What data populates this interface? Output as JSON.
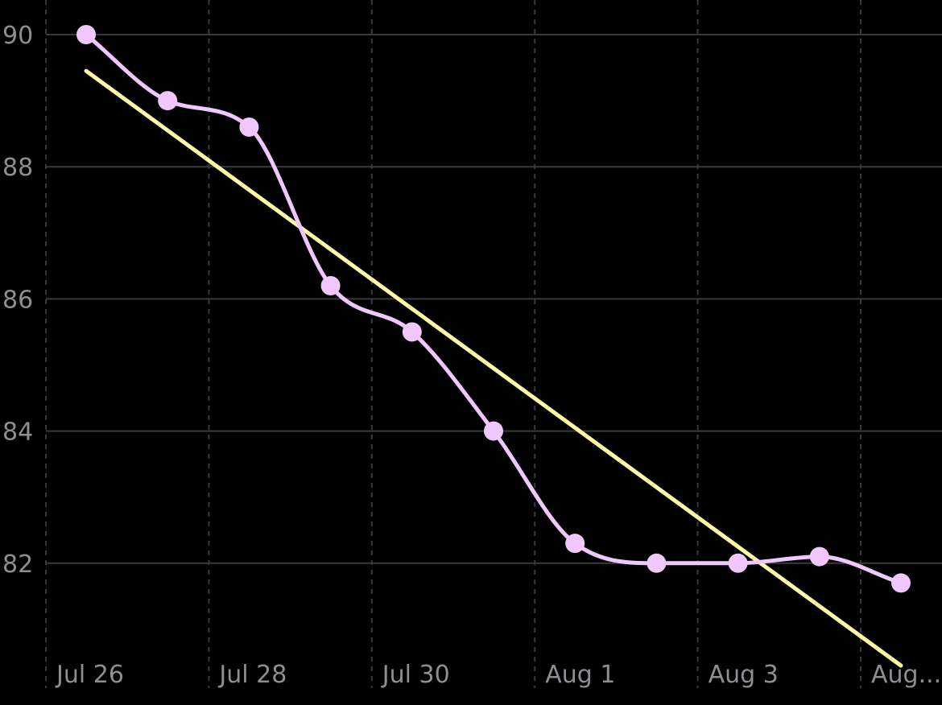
{
  "chart_data": {
    "type": "line",
    "x_tick_labels": [
      "Jul 26",
      "Jul 28",
      "Jul 30",
      "Aug 1",
      "Aug 3",
      "Aug..."
    ],
    "y_tick_labels": [
      "90",
      "88",
      "86",
      "84",
      "82"
    ],
    "ylim": [
      80.3,
      90.5
    ],
    "grid": true,
    "series": [
      {
        "style": "smooth-line-with-markers",
        "color": "#f0c8ff",
        "points": [
          {
            "date": "Jul 26",
            "y": 90.0
          },
          {
            "date": "Jul 27",
            "y": 89.0
          },
          {
            "date": "Jul 28",
            "y": 88.6
          },
          {
            "date": "Jul 29",
            "y": 86.2
          },
          {
            "date": "Jul 30",
            "y": 85.5
          },
          {
            "date": "Jul 31",
            "y": 84.0
          },
          {
            "date": "Aug 1",
            "y": 82.3
          },
          {
            "date": "Aug 2",
            "y": 82.0
          },
          {
            "date": "Aug 3",
            "y": 82.0
          },
          {
            "date": "Aug 4",
            "y": 82.1
          },
          {
            "date": "Aug 5",
            "y": 81.7
          }
        ]
      },
      {
        "style": "trend-line",
        "color": "#fffaa8",
        "points": [
          {
            "date": "Jul 26",
            "y": 89.45
          },
          {
            "date": "Aug 5",
            "y": 80.45
          }
        ]
      }
    ]
  }
}
